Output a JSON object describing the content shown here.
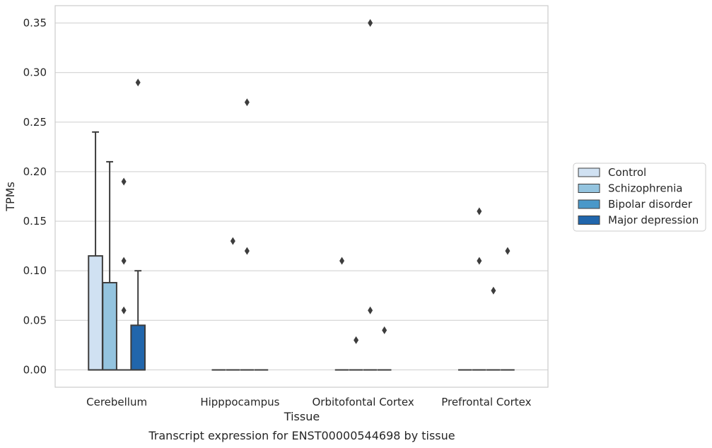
{
  "chart_data": {
    "type": "bar",
    "subtype": "grouped box plot",
    "xlabel": "Tissue",
    "ylabel": "TPMs",
    "caption": "Transcript expression for ENST00000544698 by tissue",
    "ylim": [
      -0.0175,
      0.3675
    ],
    "yticks": [
      "0.00",
      "0.05",
      "0.10",
      "0.15",
      "0.20",
      "0.25",
      "0.30",
      "0.35"
    ],
    "ytick_values": [
      0,
      0.05,
      0.1,
      0.15,
      0.2,
      0.25,
      0.3,
      0.35
    ],
    "grid": "horizontal",
    "legend_position": "right",
    "categories": [
      "Cerebellum",
      "Hipppocampus",
      "Orbitofontal Cortex",
      "Prefrontal Cortex"
    ],
    "series": [
      {
        "name": "Control",
        "color": "#d0e1f2",
        "boxes": [
          {
            "q1": 0,
            "median": 0,
            "q3": 0.115,
            "whisker_low": 0,
            "whisker_high": 0.24,
            "outliers": []
          },
          {
            "q1": 0,
            "median": 0,
            "q3": 0,
            "whisker_low": 0,
            "whisker_high": 0,
            "outliers": []
          },
          {
            "q1": 0,
            "median": 0,
            "q3": 0,
            "whisker_low": 0,
            "whisker_high": 0,
            "outliers": [
              0.11
            ]
          },
          {
            "q1": 0,
            "median": 0,
            "q3": 0,
            "whisker_low": 0,
            "whisker_high": 0,
            "outliers": []
          }
        ]
      },
      {
        "name": "Schizophrenia",
        "color": "#94c4df",
        "boxes": [
          {
            "q1": 0,
            "median": 0,
            "q3": 0.088,
            "whisker_low": 0,
            "whisker_high": 0.21,
            "outliers": []
          },
          {
            "q1": 0,
            "median": 0,
            "q3": 0,
            "whisker_low": 0,
            "whisker_high": 0,
            "outliers": [
              0.13
            ]
          },
          {
            "q1": 0,
            "median": 0,
            "q3": 0,
            "whisker_low": 0,
            "whisker_high": 0,
            "outliers": [
              0.03
            ]
          },
          {
            "q1": 0,
            "median": 0,
            "q3": 0,
            "whisker_low": 0,
            "whisker_high": 0,
            "outliers": [
              0.16,
              0.11
            ]
          }
        ]
      },
      {
        "name": "Bipolar disorder",
        "color": "#4a98c9",
        "boxes": [
          {
            "q1": 0,
            "median": 0,
            "q3": 0,
            "whisker_low": 0,
            "whisker_high": 0,
            "outliers": [
              0.19,
              0.11,
              0.06
            ]
          },
          {
            "q1": 0,
            "median": 0,
            "q3": 0,
            "whisker_low": 0,
            "whisker_high": 0,
            "outliers": [
              0.27,
              0.12
            ]
          },
          {
            "q1": 0,
            "median": 0,
            "q3": 0,
            "whisker_low": 0,
            "whisker_high": 0,
            "outliers": [
              0.35,
              0.06
            ]
          },
          {
            "q1": 0,
            "median": 0,
            "q3": 0,
            "whisker_low": 0,
            "whisker_high": 0,
            "outliers": [
              0.08
            ]
          }
        ]
      },
      {
        "name": "Major depression",
        "color": "#2166ac",
        "boxes": [
          {
            "q1": 0,
            "median": 0,
            "q3": 0.045,
            "whisker_low": 0,
            "whisker_high": 0.1,
            "outliers": [
              0.29
            ]
          },
          {
            "q1": 0,
            "median": 0,
            "q3": 0,
            "whisker_low": 0,
            "whisker_high": 0,
            "outliers": []
          },
          {
            "q1": 0,
            "median": 0,
            "q3": 0,
            "whisker_low": 0,
            "whisker_high": 0,
            "outliers": [
              0.04
            ]
          },
          {
            "q1": 0,
            "median": 0,
            "q3": 0,
            "whisker_low": 0,
            "whisker_high": 0,
            "outliers": [
              0.12
            ]
          }
        ]
      }
    ]
  }
}
